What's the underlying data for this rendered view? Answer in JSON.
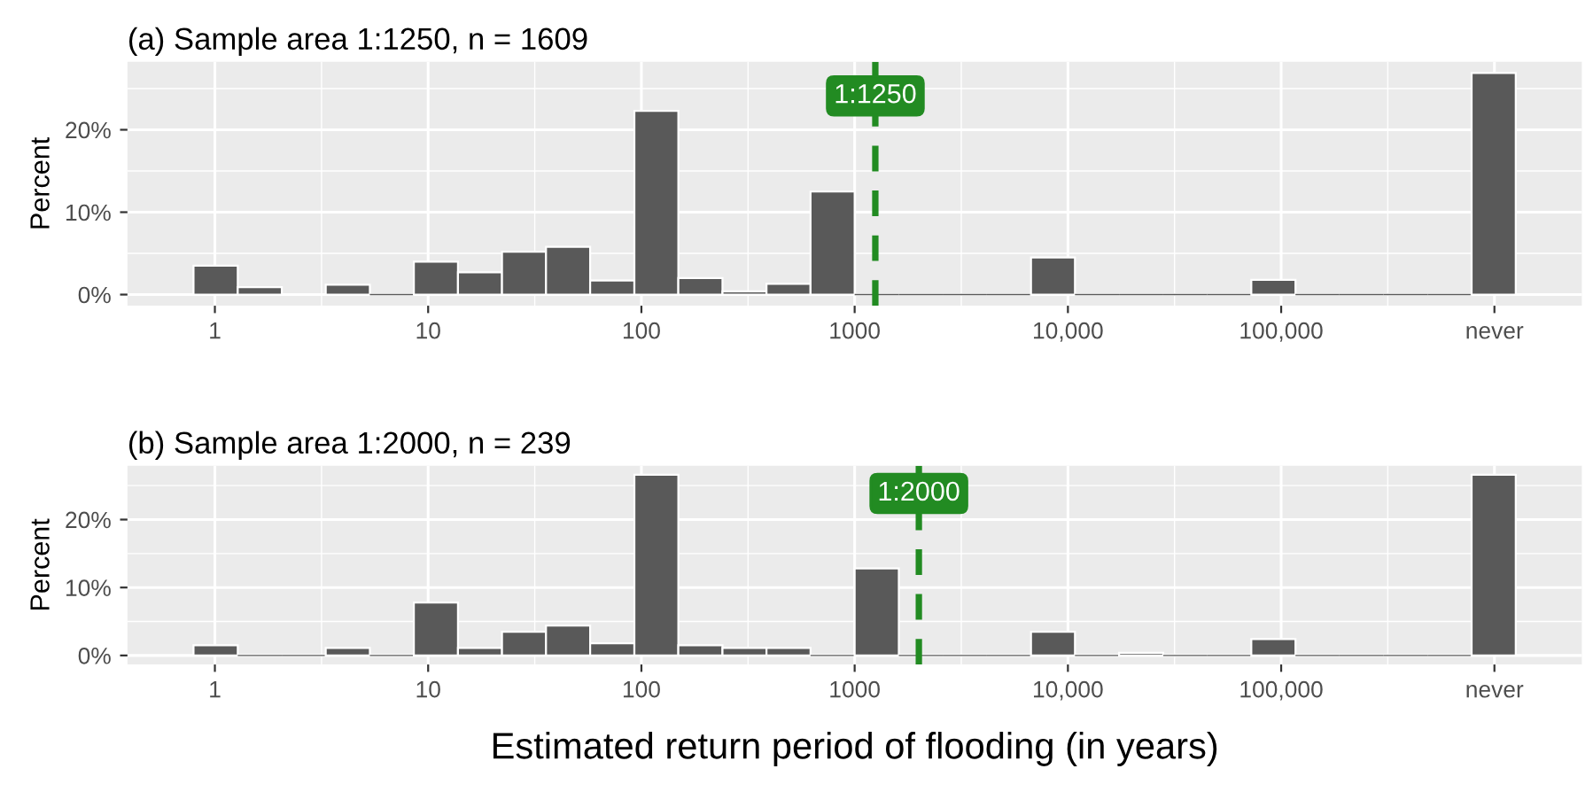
{
  "chart_data": [
    {
      "type": "histogram",
      "title": "(a) Sample area 1:1250, n = 1609",
      "ylabel": "Percent",
      "log": "x",
      "bins": [
        0.794,
        1.28,
        2.06,
        3.31,
        5.33,
        8.57,
        13.8,
        22.2,
        35.7,
        57.5,
        92.7,
        149,
        240,
        386,
        621,
        1000,
        1611,
        2588,
        4169,
        6714,
        10790,
        17378,
        27990,
        44980,
        72440,
        116700,
        187500,
        302000,
        486400,
        781600,
        1259000
      ],
      "values": [
        3.5,
        0.9,
        null,
        1.2,
        0,
        4.0,
        2.7,
        5.2,
        5.8,
        1.7,
        22.3,
        2.0,
        0.4,
        1.3,
        12.5,
        0,
        0,
        0,
        0,
        4.5,
        0,
        0,
        0,
        0,
        1.8,
        0,
        0,
        0,
        0,
        26.9
      ],
      "color": "#595959",
      "xlim": [
        0.389,
        2570000
      ],
      "xticks": [
        1,
        10,
        100,
        1000,
        {
          "value": 10000,
          "label": "10,000"
        },
        {
          "value": 100000,
          "label": "100,000"
        },
        {
          "value": 1000000,
          "label": "never"
        }
      ],
      "ylim": [
        -1.35,
        28.25
      ],
      "yticks": [
        {
          "value": 0,
          "label": "0%"
        },
        {
          "value": 10,
          "label": "10%"
        },
        {
          "value": 20,
          "label": "20%"
        }
      ],
      "ref_lines": [
        {
          "axis": "x",
          "value": 1250,
          "label": "1:1250",
          "color": "#228b22",
          "line_style": "dashed"
        }
      ],
      "grid": true
    },
    {
      "type": "histogram",
      "title": "(b) Sample area 1:2000, n = 239",
      "ylabel": "Percent",
      "xlabel": "Estimated return period of flooding (in years)",
      "log": "x",
      "bins": [
        0.794,
        1.28,
        2.06,
        3.31,
        5.33,
        8.57,
        13.8,
        22.2,
        35.7,
        57.5,
        92.7,
        149,
        240,
        386,
        621,
        1000,
        1611,
        2588,
        4169,
        6714,
        10790,
        17378,
        27990,
        44980,
        72440,
        116700,
        187500,
        302000,
        486400,
        781600,
        1259000
      ],
      "values": [
        1.5,
        0,
        0,
        1.1,
        0,
        7.8,
        1.1,
        3.5,
        4.4,
        1.8,
        26.6,
        1.5,
        1.1,
        1.1,
        0,
        12.8,
        0,
        0,
        0,
        3.5,
        0,
        0.4,
        0,
        0,
        2.4,
        0,
        0,
        0,
        0,
        26.6
      ],
      "color": "#595959",
      "xlim": [
        0.389,
        2570000
      ],
      "xticks": [
        1,
        10,
        100,
        1000,
        {
          "value": 10000,
          "label": "10,000"
        },
        {
          "value": 100000,
          "label": "100,000"
        },
        {
          "value": 1000000,
          "label": "never"
        }
      ],
      "ylim": [
        -1.33,
        27.93
      ],
      "yticks": [
        {
          "value": 0,
          "label": "0%"
        },
        {
          "value": 10,
          "label": "10%"
        },
        {
          "value": 20,
          "label": "20%"
        }
      ],
      "ref_lines": [
        {
          "axis": "x",
          "value": 2000,
          "label": "1:2000",
          "color": "#228b22",
          "line_style": "dashed"
        }
      ],
      "grid": true
    }
  ]
}
